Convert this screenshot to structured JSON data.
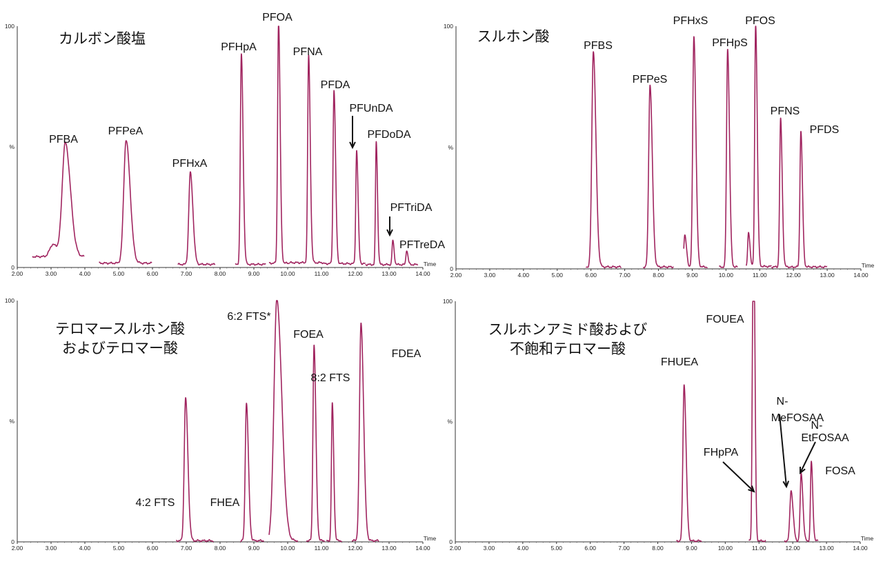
{
  "chart_data": [
    {
      "type": "line",
      "title": [
        "カルボン酸塩"
      ],
      "xlabel": "Time",
      "ylabel": "%",
      "xlim": [
        2.0,
        14.0
      ],
      "ylim": [
        0,
        100
      ],
      "x_ticks": [
        "2.00",
        "3.00",
        "4.00",
        "5.00",
        "6.00",
        "7.00",
        "8.00",
        "9.00",
        "10.00",
        "11.00",
        "12.00",
        "13.00",
        "14.00"
      ],
      "y_ticks": [
        "0",
        "%",
        "100"
      ],
      "color": "#a0245f",
      "series": [
        {
          "range": [
            2.45,
            3.98
          ],
          "baseline": 4.5,
          "peaks": [
            {
              "rt": 3.42,
              "height": 47,
              "width": 0.09
            },
            {
              "rt": 3.05,
              "height": 5,
              "width": 0.09
            }
          ]
        },
        {
          "range": [
            4.42,
            5.98
          ],
          "baseline": 1.8,
          "peaks": [
            {
              "rt": 5.22,
              "height": 51,
              "width": 0.07
            }
          ]
        },
        {
          "range": [
            6.75,
            7.85
          ],
          "baseline": 1.3,
          "peaks": [
            {
              "rt": 7.12,
              "height": 38,
              "width": 0.045
            }
          ]
        },
        {
          "range": [
            8.45,
            9.35
          ],
          "baseline": 1.3,
          "peaks": [
            {
              "rt": 8.63,
              "height": 87,
              "width": 0.03
            }
          ]
        },
        {
          "range": [
            9.45,
            10.05
          ],
          "baseline": 1.8,
          "peaks": [
            {
              "rt": 9.73,
              "height": 100,
              "width": 0.028
            }
          ]
        },
        {
          "range": [
            10.05,
            11.05
          ],
          "baseline": 2.0,
          "peaks": [
            {
              "rt": 10.62,
              "height": 86,
              "width": 0.028
            }
          ]
        },
        {
          "range": [
            11.05,
            12.3
          ],
          "baseline": 1.6,
          "peaks": [
            {
              "rt": 11.37,
              "height": 72,
              "width": 0.028
            },
            {
              "rt": 12.04,
              "height": 47,
              "width": 0.025
            }
          ]
        },
        {
          "range": [
            12.3,
            13.85
          ],
          "baseline": 1.2,
          "peaks": [
            {
              "rt": 12.62,
              "height": 51,
              "width": 0.022
            },
            {
              "rt": 13.11,
              "height": 10,
              "width": 0.022
            },
            {
              "rt": 13.52,
              "height": 6,
              "width": 0.022
            }
          ]
        }
      ],
      "labels": [
        "PFBA",
        "PFPeA",
        "PFHxA",
        "PFHpA",
        "PFOA",
        "PFNA",
        "PFDA",
        "PFUnDA",
        "PFDoDA",
        "PFTriDA",
        "PFTreDA"
      ]
    },
    {
      "type": "line",
      "title": [
        "スルホン酸"
      ],
      "xlabel": "Time",
      "ylabel": "%",
      "xlim": [
        2.0,
        14.0
      ],
      "ylim": [
        0,
        100
      ],
      "x_ticks": [
        "2.00",
        "3.00",
        "4.00",
        "5.00",
        "6.00",
        "7.00",
        "8.00",
        "9.00",
        "10.00",
        "11.00",
        "12.00",
        "13.00",
        "14.00"
      ],
      "y_ticks": [
        "0",
        "%",
        "100"
      ],
      "color": "#a0245f",
      "series": [
        {
          "range": [
            5.85,
            6.9
          ],
          "baseline": 0.8,
          "peaks": [
            {
              "rt": 6.07,
              "height": 89,
              "width": 0.045
            }
          ]
        },
        {
          "range": [
            7.55,
            8.45
          ],
          "baseline": 0.8,
          "peaks": [
            {
              "rt": 7.75,
              "height": 75,
              "width": 0.04
            }
          ]
        },
        {
          "range": [
            8.75,
            9.45
          ],
          "baseline": 0.8,
          "peaks": [
            {
              "rt": 8.78,
              "height": 13,
              "width": 0.03
            },
            {
              "rt": 9.05,
              "height": 95,
              "width": 0.035
            }
          ]
        },
        {
          "range": [
            9.8,
            10.35
          ],
          "baseline": 0.8,
          "peaks": [
            {
              "rt": 10.05,
              "height": 90,
              "width": 0.032
            }
          ]
        },
        {
          "range": [
            10.6,
            11.35
          ],
          "baseline": 1.0,
          "peaks": [
            {
              "rt": 10.67,
              "height": 14,
              "width": 0.025
            },
            {
              "rt": 10.88,
              "height": 100,
              "width": 0.028
            }
          ]
        },
        {
          "range": [
            11.35,
            11.95
          ],
          "baseline": 0.8,
          "peaks": [
            {
              "rt": 11.62,
              "height": 61,
              "width": 0.028
            }
          ]
        },
        {
          "range": [
            11.95,
            13.0
          ],
          "baseline": 0.8,
          "peaks": [
            {
              "rt": 12.22,
              "height": 56,
              "width": 0.028
            }
          ]
        }
      ],
      "labels": [
        "PFBS",
        "PFPeS",
        "PFHxS",
        "PFHpS",
        "PFOS",
        "PFNS",
        "PFDS"
      ]
    },
    {
      "type": "line",
      "title": [
        "テロマースルホン酸",
        "およびテロマー酸"
      ],
      "xlabel": "Time",
      "ylabel": "%",
      "xlim": [
        2.0,
        14.0
      ],
      "ylim": [
        0,
        100
      ],
      "x_ticks": [
        "2.00",
        "3.00",
        "4.00",
        "5.00",
        "6.00",
        "7.00",
        "8.00",
        "9.00",
        "10.00",
        "11.00",
        "12.00",
        "13.00",
        "14.00"
      ],
      "y_ticks": [
        "0",
        "%",
        "100"
      ],
      "color": "#a0245f",
      "series": [
        {
          "range": [
            6.7,
            7.8
          ],
          "baseline": 0.5,
          "peaks": [
            {
              "rt": 6.98,
              "height": 59,
              "width": 0.04
            }
          ]
        },
        {
          "range": [
            8.6,
            9.3
          ],
          "baseline": 0.5,
          "peaks": [
            {
              "rt": 8.78,
              "height": 57,
              "width": 0.035
            }
          ]
        },
        {
          "range": [
            9.45,
            10.3
          ],
          "baseline": 0.5,
          "peaks": [
            {
              "rt": 9.68,
              "height": 100,
              "width": 0.085
            }
          ]
        },
        {
          "range": [
            10.55,
            11.1
          ],
          "baseline": 0.5,
          "peaks": [
            {
              "rt": 10.78,
              "height": 81,
              "width": 0.032
            }
          ]
        },
        {
          "range": [
            11.15,
            11.6
          ],
          "baseline": 0.5,
          "peaks": [
            {
              "rt": 11.32,
              "height": 57,
              "width": 0.025
            }
          ]
        },
        {
          "range": [
            11.9,
            12.7
          ],
          "baseline": 0.5,
          "peaks": [
            {
              "rt": 12.17,
              "height": 90,
              "width": 0.045
            }
          ]
        }
      ],
      "labels": [
        "4:2 FTS",
        "FHEA",
        "6:2 FTS*",
        "FOEA",
        "8:2 FTS",
        "FDEA"
      ]
    },
    {
      "type": "line",
      "title": [
        "スルホンアミド酸および",
        "不飽和テロマー酸"
      ],
      "xlabel": "Time",
      "ylabel": "%",
      "xlim": [
        2.0,
        14.0
      ],
      "ylim": [
        0,
        100
      ],
      "x_ticks": [
        "2.00",
        "3.00",
        "4.00",
        "5.00",
        "6.00",
        "7.00",
        "8.00",
        "9.00",
        "10.00",
        "11.00",
        "12.00",
        "13.00",
        "14.00"
      ],
      "y_ticks": [
        "0",
        "%",
        "100"
      ],
      "color": "#a0245f",
      "series": [
        {
          "range": [
            8.55,
            9.3
          ],
          "baseline": 0.4,
          "peaks": [
            {
              "rt": 8.78,
              "height": 65,
              "width": 0.035
            }
          ]
        },
        {
          "range": [
            10.7,
            11.2
          ],
          "baseline": 0.4,
          "peaks": [
            {
              "rt": 10.82,
              "height": 100,
              "width": 0.024
            },
            {
              "rt": 10.86,
              "height": 55,
              "width": 0.02
            }
          ]
        },
        {
          "range": [
            11.75,
            12.75
          ],
          "baseline": 0.4,
          "peaks": [
            {
              "rt": 11.95,
              "height": 21,
              "width": 0.035
            },
            {
              "rt": 12.25,
              "height": 28,
              "width": 0.03
            },
            {
              "rt": 12.55,
              "height": 33,
              "width": 0.025
            }
          ]
        }
      ],
      "labels": [
        "FHUEA",
        "FOUEA",
        "FHpPA",
        "N-\nMeFOSAA",
        "N-\nEtFOSAA",
        "FOSA"
      ]
    }
  ]
}
